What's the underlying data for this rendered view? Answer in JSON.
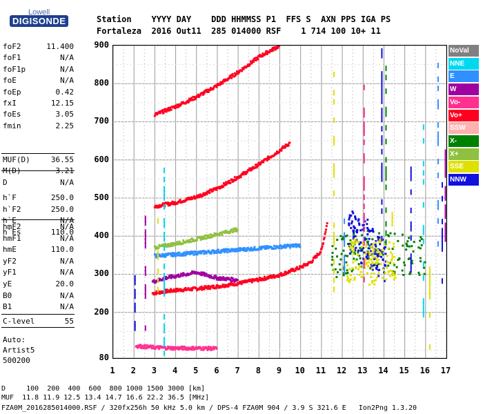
{
  "logo": {
    "top_text": "Lowell",
    "brand": "DIGISONDE"
  },
  "header": {
    "row1": "Station    YYYY DAY    DDD HHMMSS P1  FFS S  AXN PPS IGA PS",
    "row2": "Fortaleza  2016 Out11  285 014000 RSF    1 714 100 10+ 11"
  },
  "params_group1": [
    {
      "key": "foF2",
      "value": "11.400"
    },
    {
      "key": "foF1",
      "value": "N/A"
    },
    {
      "key": "foF1p",
      "value": "N/A"
    },
    {
      "key": "foE",
      "value": "N/A"
    },
    {
      "key": "foEp",
      "value": "0.42"
    },
    {
      "key": "fxI",
      "value": "12.15"
    },
    {
      "key": "foEs",
      "value": "3.05"
    },
    {
      "key": "fmin",
      "value": "2.25"
    }
  ],
  "params_group2": [
    {
      "key": "MUF(D)",
      "value": "36.55"
    },
    {
      "key": "M(D)",
      "value": "3.21"
    },
    {
      "key": "D",
      "value": "N/A"
    }
  ],
  "params_group3": [
    {
      "key": "h`F",
      "value": "250.0"
    },
    {
      "key": "h`F2",
      "value": "250.0"
    },
    {
      "key": "h`E",
      "value": "N/A"
    },
    {
      "key": "h`Es",
      "value": "110.0"
    }
  ],
  "params_group4": [
    {
      "key": "hmF2",
      "value": "N/A"
    },
    {
      "key": "hmF1",
      "value": "N/A"
    },
    {
      "key": "hmE",
      "value": "110.0"
    },
    {
      "key": "yF2",
      "value": "N/A"
    },
    {
      "key": "yF1",
      "value": "N/A"
    },
    {
      "key": "yE",
      "value": "20.0"
    },
    {
      "key": "B0",
      "value": "N/A"
    },
    {
      "key": "B1",
      "value": "N/A"
    }
  ],
  "params_group5": [
    {
      "key": "C-level",
      "value": "55"
    }
  ],
  "auto": {
    "line1": "Auto:",
    "line2": "Artist5",
    "line3": "500200"
  },
  "legend": [
    {
      "label": "NoVal",
      "color": "#808080"
    },
    {
      "label": "NNE",
      "color": "#00d8f0"
    },
    {
      "label": "E",
      "color": "#3090ff"
    },
    {
      "label": "W",
      "color": "#a000a0"
    },
    {
      "label": "Vo-",
      "color": "#ff3090"
    },
    {
      "label": "Vo+",
      "color": "#ff0020"
    },
    {
      "label": "SSW",
      "color": "#ffb0b0"
    },
    {
      "label": "X-",
      "color": "#008000"
    },
    {
      "label": "X+",
      "color": "#90c040"
    },
    {
      "label": "SSE",
      "color": "#e0e000"
    },
    {
      "label": "NNW",
      "color": "#1010e0"
    }
  ],
  "footer": {
    "line1": "D     100  200  400  600  800 1000 1500 3000 [km]",
    "line2": "MUF  11.8 11.9 12.5 13.4 14.7 16.6 22.2 36.5 [MHz]",
    "line3": "FZA0M_2016285014000.RSF / 320fx256h 50 kHz 5.0 km / DPS-4 FZA0M 904 / 3.9 S 321.6 E   Ion2Png 1.3.20"
  },
  "chart_data": {
    "type": "scatter",
    "title": "",
    "xlabel": "",
    "ylabel": "",
    "xlim": [
      1,
      17
    ],
    "ylim": [
      80,
      900
    ],
    "x_ticks": [
      "1",
      "2",
      "3",
      "4",
      "5",
      "6",
      "7",
      "8",
      "9",
      "10",
      "11",
      "12",
      "13",
      "14",
      "15",
      "16",
      "17"
    ],
    "y_ticks": [
      "80",
      "200",
      "300",
      "400",
      "500",
      "600",
      "700",
      "800",
      "900"
    ],
    "grid": true,
    "series": [
      {
        "name": "Vo+",
        "color": "#ff0020",
        "x": [
          2.9,
          3.5,
          4.0,
          5.0,
          6.0,
          7.0,
          8.0,
          9.0,
          10.0,
          10.5,
          11.0,
          11.3
        ],
        "y": [
          250,
          255,
          258,
          262,
          268,
          276,
          286,
          298,
          318,
          332,
          362,
          440
        ]
      },
      {
        "name": "Vo+",
        "color": "#ff0020",
        "x": [
          3.0,
          4.0,
          5.0,
          6.0,
          7.0,
          8.0,
          9.0,
          9.5
        ],
        "y": [
          478,
          488,
          503,
          525,
          555,
          588,
          625,
          645
        ]
      },
      {
        "name": "Vo+",
        "color": "#ff0020",
        "x": [
          3.0,
          4.0,
          5.0,
          6.0,
          7.0,
          8.0,
          9.0
        ],
        "y": [
          718,
          740,
          765,
          795,
          830,
          870,
          900
        ]
      },
      {
        "name": "E",
        "color": "#3090ff",
        "x": [
          3.0,
          4.0,
          5.0,
          6.0,
          7.0,
          8.0,
          9.0,
          10.0
        ],
        "y": [
          348,
          352,
          356,
          360,
          364,
          368,
          372,
          376
        ]
      },
      {
        "name": "X+",
        "color": "#90c040",
        "x": [
          3.0,
          4.0,
          5.0,
          6.0,
          7.0
        ],
        "y": [
          370,
          380,
          392,
          405,
          418
        ]
      },
      {
        "name": "W",
        "color": "#a000a0",
        "x": [
          2.9,
          3.5,
          4.0,
          4.5,
          5.0,
          6.0,
          7.0
        ],
        "y": [
          280,
          290,
          295,
          300,
          305,
          290,
          285
        ]
      },
      {
        "name": "Vo-",
        "color": "#ff3090",
        "x": [
          2.1,
          2.5,
          3.0,
          3.5,
          4.0,
          5.0,
          6.0
        ],
        "y": [
          112,
          110,
          108,
          107,
          106,
          106,
          105
        ]
      },
      {
        "name": "X-",
        "color": "#008000",
        "x": [
          11.5,
          12.0,
          12.5,
          13.0,
          13.5,
          14.0,
          15.0,
          16.0
        ],
        "y": [
          345,
          350,
          360,
          370,
          360,
          355,
          350,
          355
        ]
      },
      {
        "name": "NNW",
        "color": "#1010e0",
        "x": [
          12.3,
          12.6,
          12.9,
          13.2,
          13.6,
          14.1
        ],
        "y": [
          400,
          420,
          380,
          390,
          350,
          330
        ]
      },
      {
        "name": "SSE",
        "color": "#e0e000",
        "x": [
          12.2,
          12.8,
          13.3,
          13.9,
          14.6
        ],
        "y": [
          330,
          345,
          320,
          340,
          325
        ]
      }
    ]
  }
}
